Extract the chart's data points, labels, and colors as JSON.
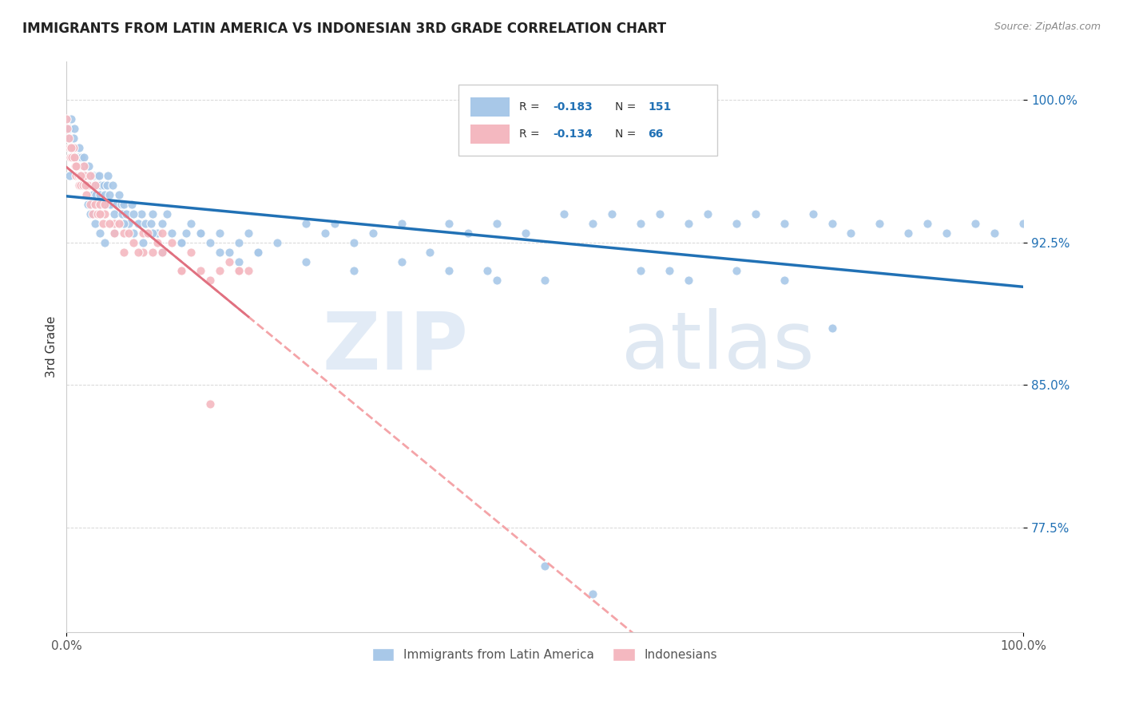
{
  "title": "IMMIGRANTS FROM LATIN AMERICA VS INDONESIAN 3RD GRADE CORRELATION CHART",
  "source": "Source: ZipAtlas.com",
  "ylabel": "3rd Grade",
  "xlim": [
    0.0,
    1.0
  ],
  "ylim": [
    0.72,
    1.02
  ],
  "yticks": [
    0.775,
    0.85,
    0.925,
    1.0
  ],
  "ytick_labels": [
    "77.5%",
    "85.0%",
    "92.5%",
    "100.0%"
  ],
  "xtick_labels": [
    "0.0%",
    "100.0%"
  ],
  "xticks": [
    0.0,
    1.0
  ],
  "blue_color": "#a8c8e8",
  "pink_color": "#f4b8c0",
  "blue_line_color": "#2171b5",
  "pink_solid_color": "#e07080",
  "pink_dashed_color": "#f4a4a8",
  "watermark_zip": "ZIP",
  "watermark_atlas": "atlas",
  "background_color": "#ffffff",
  "grid_color": "#cccccc",
  "blue_x": [
    0.002,
    0.003,
    0.004,
    0.005,
    0.006,
    0.007,
    0.008,
    0.009,
    0.01,
    0.011,
    0.012,
    0.013,
    0.014,
    0.015,
    0.016,
    0.017,
    0.018,
    0.019,
    0.02,
    0.021,
    0.022,
    0.023,
    0.025,
    0.026,
    0.027,
    0.028,
    0.029,
    0.03,
    0.031,
    0.032,
    0.033,
    0.034,
    0.035,
    0.036,
    0.038,
    0.039,
    0.04,
    0.041,
    0.042,
    0.043,
    0.045,
    0.046,
    0.048,
    0.05,
    0.052,
    0.055,
    0.057,
    0.058,
    0.06,
    0.062,
    0.065,
    0.068,
    0.07,
    0.075,
    0.078,
    0.082,
    0.085,
    0.088,
    0.09,
    0.095,
    0.1,
    0.105,
    0.11,
    0.12,
    0.125,
    0.13,
    0.14,
    0.15,
    0.16,
    0.17,
    0.18,
    0.19,
    0.2,
    0.22,
    0.25,
    0.27,
    0.28,
    0.3,
    0.32,
    0.35,
    0.38,
    0.4,
    0.42,
    0.44,
    0.45,
    0.48,
    0.5,
    0.52,
    0.55,
    0.57,
    0.6,
    0.62,
    0.63,
    0.65,
    0.67,
    0.7,
    0.72,
    0.75,
    0.78,
    0.8,
    0.82,
    0.85,
    0.88,
    0.9,
    0.92,
    0.95,
    0.97,
    1.0,
    0.003,
    0.005,
    0.008,
    0.012,
    0.015,
    0.018,
    0.022,
    0.025,
    0.03,
    0.035,
    0.04,
    0.05,
    0.06,
    0.07,
    0.08,
    0.09,
    0.1,
    0.12,
    0.14,
    0.16,
    0.18,
    0.2,
    0.25,
    0.3,
    0.35,
    0.4,
    0.45,
    0.5,
    0.55,
    0.6,
    0.65,
    0.7,
    0.75,
    0.8,
    0.85,
    0.9,
    0.95,
    0.5,
    0.55,
    0.45,
    0.48,
    0.52,
    0.58,
    0.62
  ],
  "blue_y": [
    0.985,
    0.985,
    0.98,
    0.99,
    0.975,
    0.98,
    0.985,
    0.975,
    0.97,
    0.965,
    0.97,
    0.975,
    0.965,
    0.96,
    0.97,
    0.965,
    0.97,
    0.965,
    0.96,
    0.955,
    0.96,
    0.965,
    0.955,
    0.96,
    0.95,
    0.955,
    0.96,
    0.955,
    0.95,
    0.96,
    0.955,
    0.96,
    0.95,
    0.955,
    0.945,
    0.955,
    0.95,
    0.945,
    0.955,
    0.96,
    0.95,
    0.945,
    0.955,
    0.94,
    0.945,
    0.95,
    0.945,
    0.94,
    0.945,
    0.94,
    0.935,
    0.945,
    0.93,
    0.935,
    0.94,
    0.935,
    0.93,
    0.935,
    0.94,
    0.93,
    0.935,
    0.94,
    0.93,
    0.925,
    0.93,
    0.935,
    0.93,
    0.925,
    0.93,
    0.92,
    0.925,
    0.93,
    0.92,
    0.925,
    0.935,
    0.93,
    0.935,
    0.925,
    0.93,
    0.935,
    0.92,
    0.935,
    0.93,
    0.91,
    0.935,
    0.93,
    0.905,
    0.94,
    0.935,
    0.94,
    0.935,
    0.94,
    0.91,
    0.935,
    0.94,
    0.935,
    0.94,
    0.935,
    0.94,
    0.935,
    0.93,
    0.935,
    0.93,
    0.935,
    0.93,
    0.935,
    0.93,
    0.935,
    0.96,
    0.975,
    0.97,
    0.965,
    0.96,
    0.955,
    0.945,
    0.94,
    0.935,
    0.93,
    0.925,
    0.93,
    0.935,
    0.94,
    0.925,
    0.93,
    0.92,
    0.925,
    0.93,
    0.92,
    0.915,
    0.92,
    0.915,
    0.91,
    0.915,
    0.91,
    0.905,
    0.755,
    0.74,
    0.91,
    0.905,
    0.91,
    0.905,
    0.88
  ],
  "pink_x": [
    0.0,
    0.001,
    0.002,
    0.003,
    0.004,
    0.005,
    0.006,
    0.007,
    0.008,
    0.009,
    0.01,
    0.011,
    0.012,
    0.013,
    0.014,
    0.015,
    0.016,
    0.017,
    0.018,
    0.019,
    0.02,
    0.021,
    0.022,
    0.025,
    0.027,
    0.03,
    0.032,
    0.035,
    0.038,
    0.04,
    0.05,
    0.06,
    0.08,
    0.1,
    0.12,
    0.15,
    0.18,
    0.005,
    0.01,
    0.015,
    0.02,
    0.025,
    0.03,
    0.035,
    0.04,
    0.045,
    0.05,
    0.055,
    0.06,
    0.065,
    0.07,
    0.075,
    0.08,
    0.085,
    0.09,
    0.095,
    0.1,
    0.11,
    0.12,
    0.13,
    0.14,
    0.15,
    0.16,
    0.17,
    0.18,
    0.19
  ],
  "pink_y": [
    0.99,
    0.985,
    0.98,
    0.975,
    0.97,
    0.975,
    0.97,
    0.975,
    0.97,
    0.965,
    0.96,
    0.965,
    0.96,
    0.955,
    0.96,
    0.955,
    0.96,
    0.955,
    0.965,
    0.96,
    0.955,
    0.95,
    0.955,
    0.945,
    0.94,
    0.945,
    0.94,
    0.945,
    0.935,
    0.94,
    0.935,
    0.93,
    0.92,
    0.93,
    0.91,
    0.84,
    0.91,
    0.975,
    0.965,
    0.96,
    0.955,
    0.96,
    0.955,
    0.94,
    0.945,
    0.935,
    0.93,
    0.935,
    0.92,
    0.93,
    0.925,
    0.92,
    0.93,
    0.93,
    0.92,
    0.925,
    0.92,
    0.925,
    0.91,
    0.92,
    0.91,
    0.905,
    0.91,
    0.915,
    0.91,
    0.91
  ]
}
